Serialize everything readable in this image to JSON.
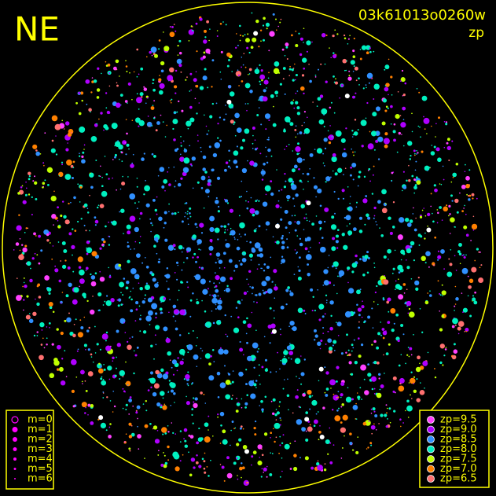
{
  "header": {
    "direction": "NE",
    "image_id": "03k61013o0260w",
    "mode": "zp"
  },
  "magnitude_legend": {
    "color": "#ff00ff",
    "items": [
      "m=0",
      "m=1",
      "m=2",
      "m=3",
      "m=4",
      "m=5",
      "m=6"
    ]
  },
  "zp_legend": {
    "items": [
      {
        "label": "zp=9.5",
        "color": "#ff40ff"
      },
      {
        "label": "zp=9.0",
        "color": "#b000ff"
      },
      {
        "label": "zp=8.5",
        "color": "#3090ff"
      },
      {
        "label": "zp=8.0",
        "color": "#00f0c0"
      },
      {
        "label": "zp=7.5",
        "color": "#c0ff00"
      },
      {
        "label": "zp=7.0",
        "color": "#ff8000"
      },
      {
        "label": "zp=6.5",
        "color": "#ff7070"
      }
    ]
  }
}
